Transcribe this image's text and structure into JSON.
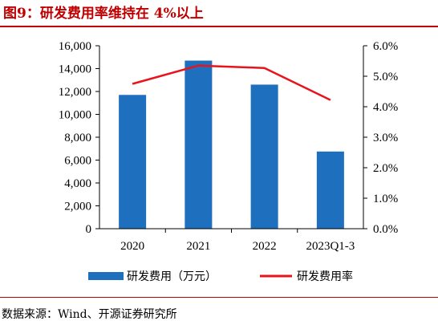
{
  "header": {
    "title": "图9：研发费用率维持在 4%以上"
  },
  "footer": {
    "source": "数据来源：Wind、开源证券研究所"
  },
  "colors": {
    "bar": "#1f6fbf",
    "line": "#e8131c",
    "title": "#c00000"
  },
  "chart_data": {
    "type": "bar",
    "categories": [
      "2020",
      "2021",
      "2022",
      "2023Q1-3"
    ],
    "series": [
      {
        "name": "研发费用（万元）",
        "type": "bar",
        "axis": "left",
        "values": [
          11700,
          14700,
          12600,
          6750
        ]
      },
      {
        "name": "研发费用率",
        "type": "line",
        "axis": "right",
        "values": [
          4.75,
          5.35,
          5.27,
          4.22
        ]
      }
    ],
    "left_axis": {
      "ylim": [
        0,
        16000
      ],
      "ticks": [
        "0",
        "2,000",
        "4,000",
        "6,000",
        "8,000",
        "10,000",
        "12,000",
        "14,000",
        "16,000"
      ]
    },
    "right_axis": {
      "ylim": [
        0,
        6
      ],
      "ticks": [
        "0.0%",
        "1.0%",
        "2.0%",
        "3.0%",
        "4.0%",
        "5.0%",
        "6.0%"
      ]
    },
    "grid": false,
    "legend_position": "bottom"
  }
}
